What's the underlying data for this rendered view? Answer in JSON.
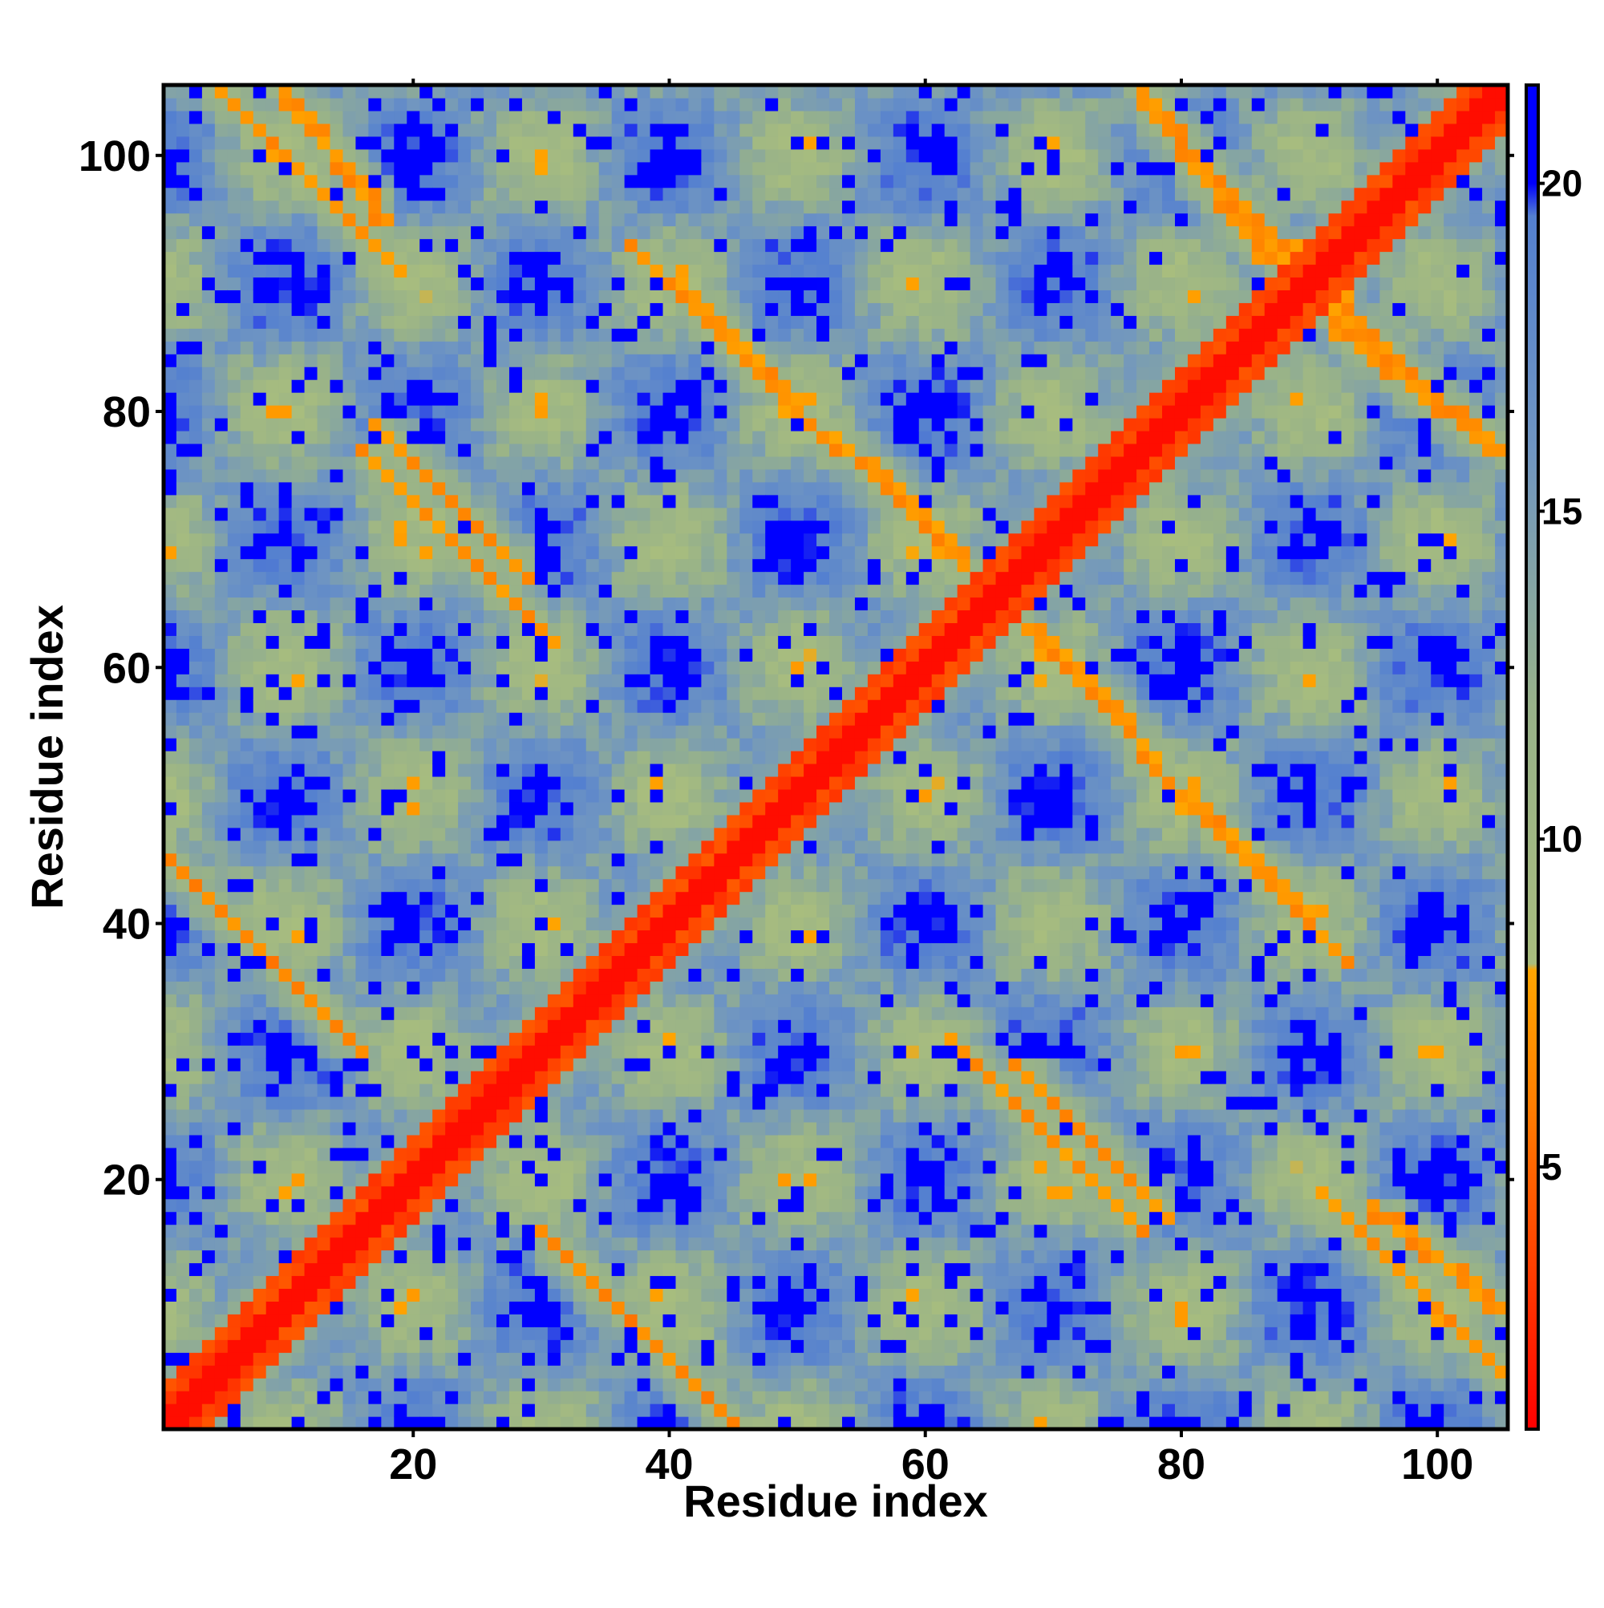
{
  "chart_data": {
    "type": "heatmap",
    "title": "",
    "xlabel": "Residue index",
    "ylabel": "Residue index",
    "n_residues": 105,
    "xlim": [
      1,
      105
    ],
    "ylim": [
      1,
      105
    ],
    "x_ticks": [
      20,
      40,
      60,
      80,
      100
    ],
    "y_ticks": [
      20,
      40,
      60,
      80,
      100
    ],
    "colorbar": {
      "range": [
        1,
        21.5
      ],
      "ticks": [
        5,
        10,
        15,
        20
      ],
      "stops": [
        {
          "value": 1.0,
          "color": "#ff0000"
        },
        {
          "value": 6.0,
          "color": "#ff7f00"
        },
        {
          "value": 8.0,
          "color": "#ffa500"
        },
        {
          "value": 8.1,
          "color": "#a8bd7e"
        },
        {
          "value": 12.0,
          "color": "#98b289"
        },
        {
          "value": 16.0,
          "color": "#6f95c2"
        },
        {
          "value": 19.5,
          "color": "#5480d0"
        },
        {
          "value": 20.0,
          "color": "#0000ff"
        }
      ]
    },
    "cap_value": 21.5,
    "description_of_values": "pairwise residue distance matrix; diagonal red (~1-4), anti-diagonal orange contact bands (~5-8), green/grey-blue halo (~9-19), blue background (>=20)",
    "contact_bands": [
      {
        "start": [
          1,
          45
        ],
        "end": [
          15,
          31
        ],
        "value": 5.5
      },
      {
        "start": [
          5,
          105
        ],
        "end": [
          18,
          92
        ],
        "value": 6.0
      },
      {
        "start": [
          17,
          76
        ],
        "end": [
          30,
          63
        ],
        "value": 6.0
      },
      {
        "start": [
          38,
          92
        ],
        "end": [
          52,
          78
        ],
        "value": 6.0
      },
      {
        "start": [
          57,
          75
        ],
        "end": [
          65,
          66
        ],
        "value": 6.0
      },
      {
        "start": [
          67,
          64
        ],
        "end": [
          77,
          54
        ],
        "value": 6.0
      },
      {
        "start": [
          79,
          51
        ],
        "end": [
          89,
          42
        ],
        "value": 6.0
      },
      {
        "start": [
          78,
          103
        ],
        "end": [
          86,
          95
        ],
        "value": 6.0
      },
      {
        "start": [
          87,
          93
        ],
        "end": [
          92,
          89
        ],
        "value": 6.0
      },
      {
        "start": [
          93,
          86
        ],
        "end": [
          105,
          77
        ],
        "value": 6.0
      },
      {
        "start": [
          68,
          28
        ],
        "end": [
          78,
          18
        ],
        "value": 6.0
      },
      {
        "start": [
          96,
          17
        ],
        "end": [
          105,
          10
        ],
        "value": 6.0
      }
    ]
  }
}
